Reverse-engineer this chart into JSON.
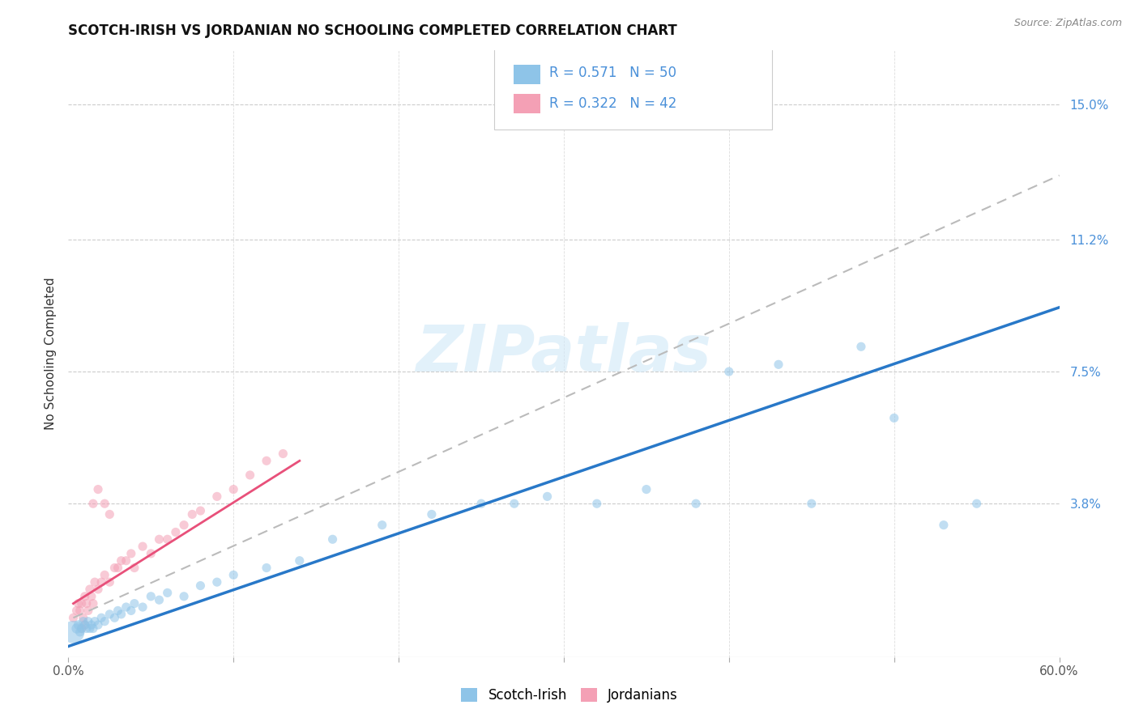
{
  "title": "SCOTCH-IRISH VS JORDANIAN NO SCHOOLING COMPLETED CORRELATION CHART",
  "source": "Source: ZipAtlas.com",
  "ylabel": "No Schooling Completed",
  "ytick_labels": [
    "15.0%",
    "11.2%",
    "7.5%",
    "3.8%"
  ],
  "ytick_values": [
    0.15,
    0.112,
    0.075,
    0.038
  ],
  "xlim": [
    0.0,
    0.6
  ],
  "ylim": [
    -0.005,
    0.165
  ],
  "legend_r1": "R = 0.571",
  "legend_n1": "N = 50",
  "legend_r2": "R = 0.322",
  "legend_n2": "N = 42",
  "color_blue": "#8ec4e8",
  "color_pink": "#f4a0b5",
  "line_blue": "#2878c8",
  "line_pink": "#e8507a",
  "line_gray_dash": "#bbbbbb",
  "watermark": "ZIPatlas",
  "background": "#ffffff",
  "si_x": [
    0.003,
    0.005,
    0.006,
    0.007,
    0.008,
    0.009,
    0.01,
    0.011,
    0.012,
    0.013,
    0.014,
    0.015,
    0.016,
    0.018,
    0.02,
    0.022,
    0.025,
    0.028,
    0.03,
    0.032,
    0.035,
    0.038,
    0.04,
    0.045,
    0.05,
    0.055,
    0.06,
    0.07,
    0.08,
    0.09,
    0.1,
    0.12,
    0.14,
    0.16,
    0.19,
    0.22,
    0.25,
    0.27,
    0.29,
    0.32,
    0.35,
    0.38,
    0.4,
    0.43,
    0.45,
    0.48,
    0.5,
    0.53,
    0.55,
    0.27
  ],
  "si_y": [
    0.002,
    0.003,
    0.004,
    0.002,
    0.003,
    0.005,
    0.004,
    0.003,
    0.005,
    0.003,
    0.004,
    0.003,
    0.005,
    0.004,
    0.006,
    0.005,
    0.007,
    0.006,
    0.008,
    0.007,
    0.009,
    0.008,
    0.01,
    0.009,
    0.012,
    0.011,
    0.013,
    0.012,
    0.015,
    0.016,
    0.018,
    0.02,
    0.022,
    0.028,
    0.032,
    0.035,
    0.038,
    0.038,
    0.04,
    0.038,
    0.042,
    0.038,
    0.075,
    0.077,
    0.038,
    0.082,
    0.062,
    0.032,
    0.038,
    0.15
  ],
  "si_sizes": [
    400,
    80,
    70,
    65,
    65,
    65,
    65,
    65,
    65,
    65,
    65,
    65,
    65,
    65,
    65,
    65,
    65,
    65,
    65,
    65,
    65,
    65,
    65,
    65,
    65,
    65,
    65,
    65,
    65,
    65,
    65,
    65,
    65,
    65,
    65,
    65,
    65,
    65,
    65,
    65,
    65,
    65,
    65,
    65,
    65,
    65,
    65,
    65,
    65,
    65
  ],
  "jo_x": [
    0.003,
    0.005,
    0.006,
    0.007,
    0.008,
    0.009,
    0.01,
    0.011,
    0.012,
    0.013,
    0.014,
    0.015,
    0.016,
    0.018,
    0.02,
    0.022,
    0.025,
    0.028,
    0.03,
    0.032,
    0.035,
    0.038,
    0.04,
    0.045,
    0.05,
    0.055,
    0.06,
    0.065,
    0.07,
    0.075,
    0.08,
    0.09,
    0.1,
    0.11,
    0.12,
    0.13,
    0.015,
    0.018,
    0.022,
    0.025,
    0.008,
    0.01
  ],
  "jo_y": [
    0.006,
    0.008,
    0.01,
    0.008,
    0.01,
    0.006,
    0.012,
    0.01,
    0.008,
    0.014,
    0.012,
    0.01,
    0.016,
    0.014,
    0.016,
    0.018,
    0.016,
    0.02,
    0.02,
    0.022,
    0.022,
    0.024,
    0.02,
    0.026,
    0.024,
    0.028,
    0.028,
    0.03,
    0.032,
    0.035,
    0.036,
    0.04,
    0.042,
    0.046,
    0.05,
    0.052,
    0.038,
    0.042,
    0.038,
    0.035,
    0.003,
    0.004
  ],
  "jo_sizes": [
    65,
    65,
    65,
    65,
    65,
    65,
    65,
    65,
    65,
    65,
    65,
    65,
    65,
    65,
    65,
    65,
    65,
    65,
    65,
    65,
    65,
    65,
    65,
    65,
    65,
    65,
    65,
    65,
    65,
    65,
    65,
    65,
    65,
    65,
    65,
    65,
    65,
    65,
    65,
    65,
    65,
    65
  ],
  "blue_line": [
    [
      0.0,
      0.6
    ],
    [
      -0.002,
      0.093
    ]
  ],
  "pink_line": [
    [
      0.003,
      0.14
    ],
    [
      0.01,
      0.05
    ]
  ],
  "gray_dash_line": [
    [
      0.003,
      0.6
    ],
    [
      0.006,
      0.13
    ]
  ]
}
